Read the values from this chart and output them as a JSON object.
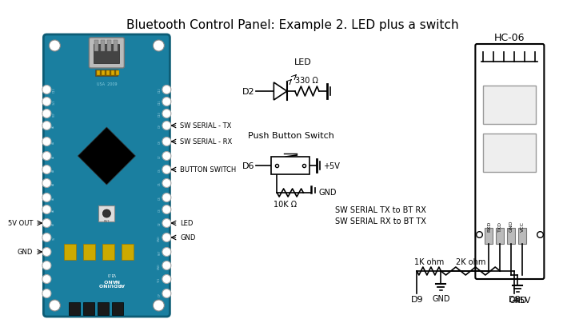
{
  "title": "Bluetooth Control Panel: Example 2. LED plus a switch",
  "bg_color": "#ffffff",
  "title_fontsize": 11,
  "board_color": "#1a7fa0",
  "board_border": "#0d5c75",
  "text_color": "#000000",
  "circuit_line_color": "#000000",
  "labels": {
    "sw_serial_tx": "SW SERIAL - TX",
    "sw_serial_rx": "SW SERIAL - RX",
    "button_switch": "BUTTON SWITCH",
    "led": "LED",
    "gnd": "GND",
    "5v_out": "5V OUT",
    "hc06": "HC-06",
    "led_label": "LED",
    "push_button": "Push Button Switch",
    "330": "330 Ω",
    "10k": "10K Ω",
    "5v": "+5V",
    "gnd_sw": "GND",
    "sw_serial_notes": "SW SERIAL TX to BT RX\nSW SERIAL RX to BT TX",
    "1k_ohm": "1K ohm",
    "2k_ohm": "2K ohm",
    "d9": "D9",
    "d8": "D8",
    "gnd_bot": "GND",
    "5v_bot": "+5V",
    "rxd": "RXD",
    "txd": "TXD",
    "gndc": "GND",
    "vcc": "VCC"
  }
}
